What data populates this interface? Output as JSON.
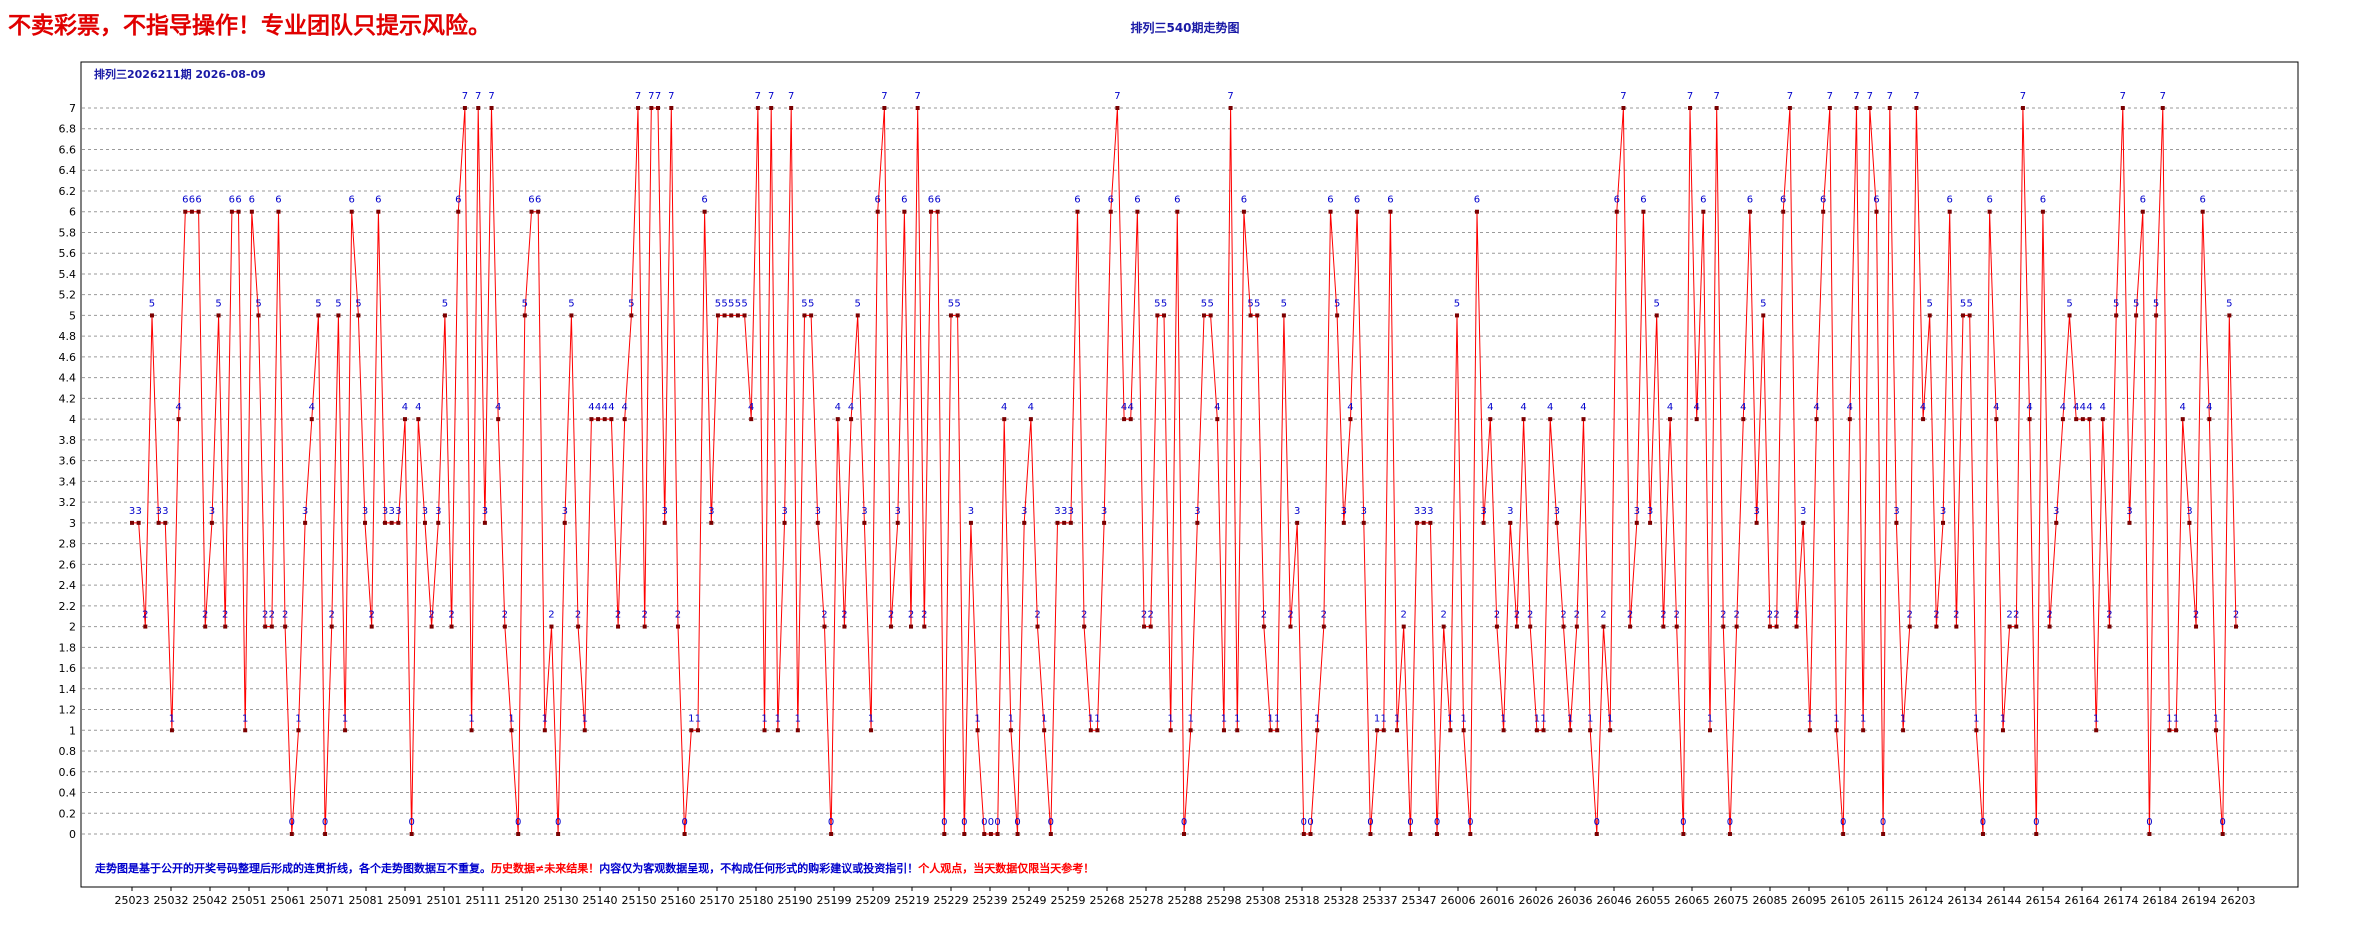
{
  "banner": "不卖彩票，不指导操作！专业团队只提示风险。",
  "chart_title": "排列三540期走势图",
  "chart_data": {
    "type": "line",
    "title": "排列三540期走势图",
    "subtitle": "排列三2026211期 2026-08-09",
    "ylim": [
      0,
      7
    ],
    "y_ticks": [
      "0",
      "0.2",
      "0.4",
      "0.6",
      "0.8",
      "1",
      "1.2",
      "1.4",
      "1.6",
      "1.8",
      "2",
      "2.2",
      "2.4",
      "2.6",
      "2.8",
      "3",
      "3.2",
      "3.4",
      "3.6",
      "3.8",
      "4",
      "4.2",
      "4.4",
      "4.6",
      "4.8",
      "5",
      "5.2",
      "5.4",
      "5.6",
      "5.8",
      "6",
      "6.2",
      "6.4",
      "6.6",
      "6.8",
      "7"
    ],
    "x_ticks": [
      "25023",
      "25032",
      "25042",
      "25051",
      "25061",
      "25071",
      "25081",
      "25091",
      "25101",
      "25111",
      "25120",
      "25130",
      "25140",
      "25150",
      "25160",
      "25170",
      "25180",
      "25190",
      "25199",
      "25209",
      "25219",
      "25229",
      "25239",
      "25249",
      "25259",
      "25268",
      "25278",
      "25288",
      "25298",
      "25308",
      "25318",
      "25328",
      "25337",
      "25347",
      "26006",
      "26016",
      "26026",
      "26036",
      "26046",
      "26055",
      "26065",
      "26075",
      "26085",
      "26095",
      "26105",
      "26115",
      "26124",
      "26134",
      "26144",
      "26154",
      "26164",
      "26174",
      "26184",
      "26194",
      "26203"
    ],
    "grid": true,
    "series_color": "#ff0000",
    "marker_color": "#7a0000",
    "label_color": "#0000cc",
    "values": [
      3,
      3,
      2,
      5,
      3,
      3,
      1,
      4,
      6,
      6,
      6,
      2,
      3,
      5,
      2,
      6,
      6,
      1,
      6,
      5,
      2,
      2,
      6,
      2,
      0,
      1,
      3,
      4,
      5,
      0,
      2,
      5,
      1,
      6,
      5,
      3,
      2,
      6,
      3,
      3,
      3,
      4,
      0,
      4,
      3,
      2,
      3,
      5,
      2,
      6,
      7,
      1,
      7,
      3,
      7,
      4,
      2,
      1,
      0,
      5,
      6,
      6,
      1,
      2,
      0,
      3,
      5,
      2,
      1,
      4,
      4,
      4,
      4,
      2,
      4,
      5,
      7,
      2,
      7,
      7,
      3,
      7,
      2,
      0,
      1,
      1,
      6,
      3,
      5,
      5,
      5,
      5,
      5,
      4,
      7,
      1,
      7,
      1,
      3,
      7,
      1,
      5,
      5,
      3,
      2,
      0,
      4,
      2,
      4,
      5,
      3,
      1,
      6,
      7,
      2,
      3,
      6,
      2,
      7,
      2,
      6,
      6,
      0,
      5,
      5,
      0,
      3,
      1,
      0,
      0,
      0,
      4,
      1,
      0,
      3,
      4,
      2,
      1,
      0,
      3,
      3,
      3,
      6,
      2,
      1,
      1,
      3,
      6,
      7,
      4,
      4,
      6,
      2,
      2,
      5,
      5,
      1,
      6,
      0,
      1,
      3,
      5,
      5,
      4,
      1,
      7,
      1,
      6,
      5,
      5,
      2,
      1,
      1,
      5,
      2,
      3,
      0,
      0,
      1,
      2,
      6,
      5,
      3,
      4,
      6,
      3,
      0,
      1,
      1,
      6,
      1,
      2,
      0,
      3,
      3,
      3,
      0,
      2,
      1,
      5,
      1,
      0,
      6,
      3,
      4,
      2,
      1,
      3,
      2,
      4,
      2,
      1,
      1,
      4,
      3,
      2,
      1,
      2,
      4,
      1,
      0,
      2,
      1,
      6,
      7,
      2,
      3,
      6,
      3,
      5,
      2,
      4,
      2,
      0,
      7,
      4,
      6,
      1,
      7,
      2,
      0,
      2,
      4,
      6,
      3,
      5,
      2,
      2,
      6,
      7,
      2,
      3,
      1,
      4,
      6,
      7,
      1,
      0,
      4,
      7,
      1,
      7,
      6,
      0,
      7,
      3,
      1,
      2,
      7,
      4,
      5,
      2,
      3,
      6,
      2,
      5,
      5,
      1,
      0,
      6,
      4,
      1,
      2,
      2,
      7,
      4,
      0,
      6,
      2,
      3,
      4,
      5,
      4,
      4,
      4,
      1,
      4,
      2,
      5,
      7,
      3,
      5,
      6,
      0,
      5,
      7,
      1,
      1,
      4,
      3,
      2,
      6,
      4,
      1,
      0,
      5,
      2
    ],
    "note": "走势图是基于公开的开奖号码整理后形成的连贯折线，各个走势图数据互不重复。历史数据≠未来结果！内容仅为客观数据呈现，不构成任何形式的购彩建议或投资指引！个人观点，当天数据仅限当天参考！"
  }
}
